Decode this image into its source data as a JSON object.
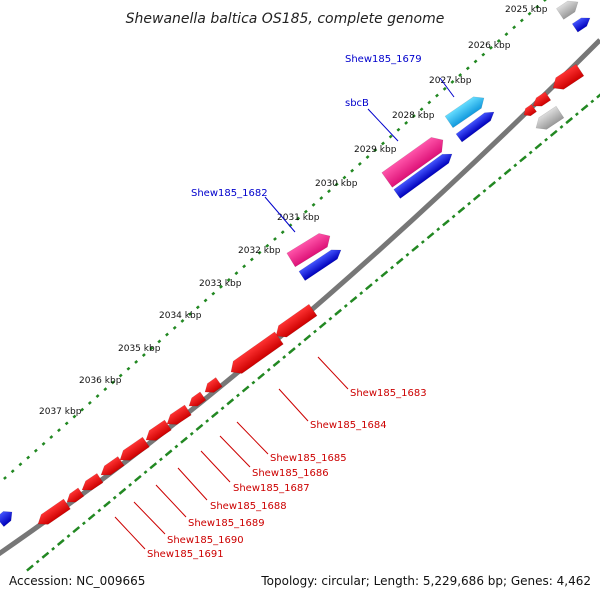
{
  "title": "Shewanella baltica OS185, complete genome",
  "ticks": [
    "2025 kbp",
    "2026 kbp",
    "2027 kbp",
    "2028 kbp",
    "2029 kbp",
    "2030 kbp",
    "2031 kbp",
    "2032 kbp",
    "2033 kbp",
    "2034 kbp",
    "2035 kbp",
    "2036 kbp",
    "2037 kbp"
  ],
  "labels_top": [
    {
      "text": "Shew185_1679",
      "color": "#0000cc"
    },
    {
      "text": "sbcB",
      "color": "#0000cc"
    },
    {
      "text": "Shew185_1682",
      "color": "#0000cc"
    }
  ],
  "labels_bottom": [
    "Shew185_1683",
    "Shew185_1684",
    "Shew185_1685",
    "Shew185_1686",
    "Shew185_1687",
    "Shew185_1688",
    "Shew185_1689",
    "Shew185_1690",
    "Shew185_1691"
  ],
  "colors": {
    "forward_gene": "#0000dd",
    "reverse_gene": "#ee0000",
    "highlight_gene": "#ee2288",
    "cyan_gene": "#22bbee",
    "grey_gene": "#bbbbbb",
    "backbone": "#777777",
    "tick_marks": "#228822",
    "label_top": "#0000cc",
    "label_bottom": "#cc0000"
  },
  "footer": {
    "accession": "Accession: NC_009665",
    "summary": "Topology: circular; Length: 5,229,686 bp; Genes: 4,462"
  }
}
